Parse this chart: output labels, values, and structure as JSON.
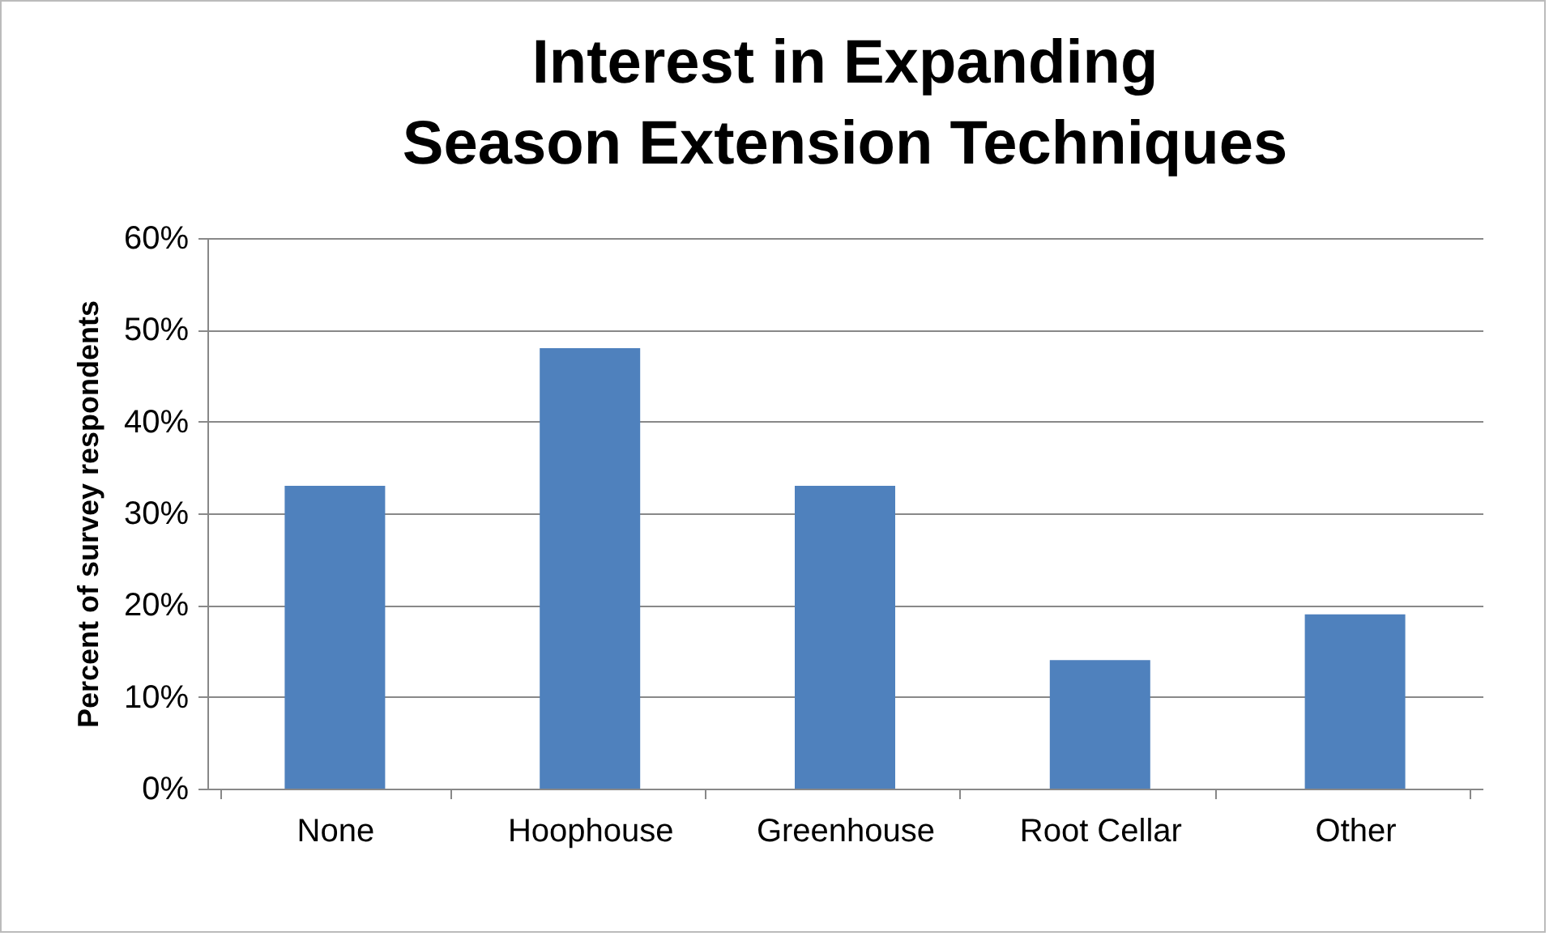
{
  "chart_data": {
    "type": "bar",
    "title": "Interest in Expanding Season Extension Techniques",
    "ylabel": "Percent of survey respondents",
    "categories": [
      "None",
      "Hoophouse",
      "Greenhouse",
      "Root Cellar",
      "Other"
    ],
    "values": [
      33,
      48,
      33,
      14,
      19
    ],
    "color": "#4f81bd",
    "ylim": [
      0,
      60
    ],
    "yticks": [
      {
        "value": 0,
        "label": "0%"
      },
      {
        "value": 10,
        "label": "10%"
      },
      {
        "value": 20,
        "label": "20%"
      },
      {
        "value": 30,
        "label": "30%"
      },
      {
        "value": 40,
        "label": "40%"
      },
      {
        "value": 50,
        "label": "50%"
      },
      {
        "value": 60,
        "label": "60%"
      }
    ],
    "grid": true
  }
}
